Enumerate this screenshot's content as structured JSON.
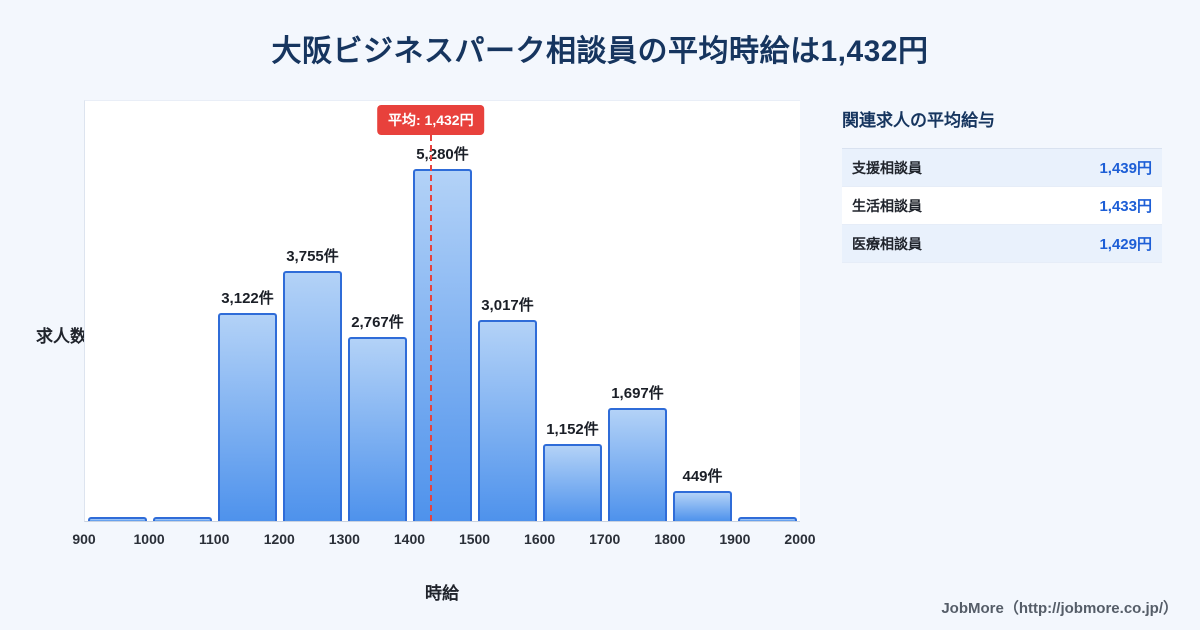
{
  "title": "大阪ビジネスパーク相談員の平均時給は1,432円",
  "chart_data": {
    "type": "bar",
    "title": "大阪ビジネスパーク相談員の平均時給は1,432円",
    "xlabel": "時給",
    "ylabel": "求人数",
    "bin_edges": [
      900,
      1000,
      1100,
      1200,
      1300,
      1400,
      1500,
      1600,
      1700,
      1800,
      1900,
      2000
    ],
    "values": [
      60,
      60,
      3122,
      3755,
      2767,
      5280,
      3017,
      1152,
      1697,
      449,
      60
    ],
    "bar_labels": [
      "",
      "",
      "3,122件",
      "3,755件",
      "2,767件",
      "5,280件",
      "3,017件",
      "1,152件",
      "1,697件",
      "449件",
      ""
    ],
    "mean": 1432,
    "mean_badge": "平均: 1,432円",
    "xlim": [
      900,
      2000
    ],
    "ylim": [
      0,
      6000
    ],
    "legend": "none",
    "grid": "off",
    "colors": {
      "bar_top": "#b3d2f7",
      "bar_bottom": "#4e92ec",
      "bar_border": "#2f6cd8",
      "mean_line": "#e8413c",
      "title_text": "#16355f",
      "value_text": "#1d5ed6",
      "background": "#f3f7fd"
    }
  },
  "side_panel": {
    "title": "関連求人の平均給与",
    "rows": [
      {
        "label": "支援相談員",
        "value": "1,439円"
      },
      {
        "label": "生活相談員",
        "value": "1,433円"
      },
      {
        "label": "医療相談員",
        "value": "1,429円"
      }
    ]
  },
  "footer": {
    "credit": "JobMore（http://jobmore.co.jp/）"
  }
}
